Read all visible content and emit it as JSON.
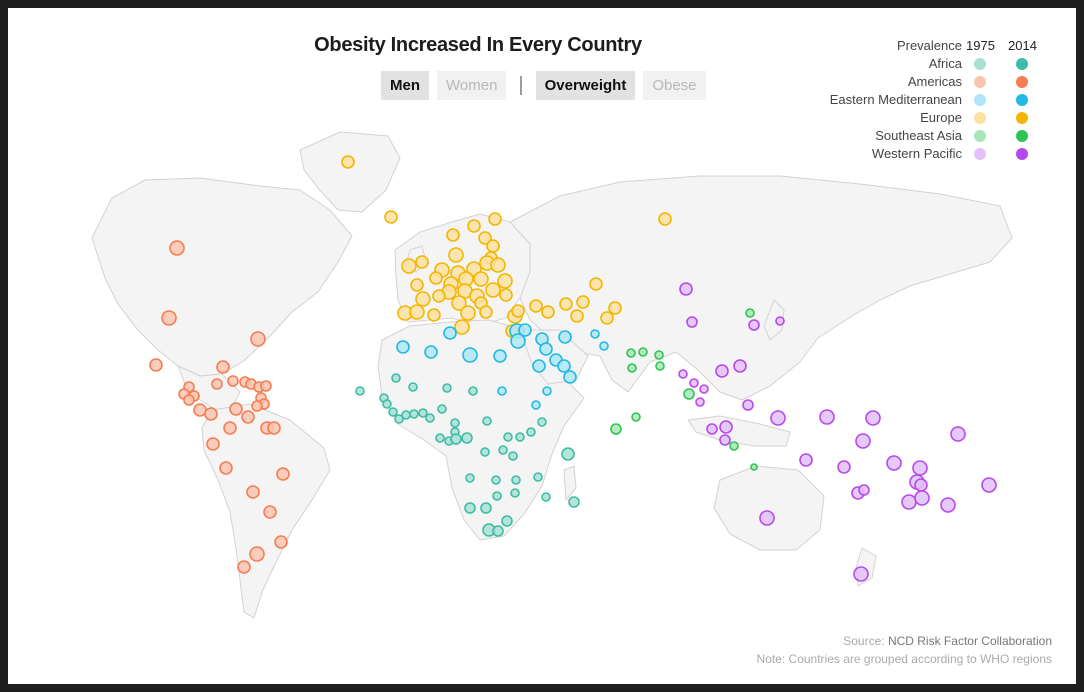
{
  "title": "Obesity Increased In Every Country",
  "toggles": {
    "sex": [
      {
        "label": "Men",
        "active": true
      },
      {
        "label": "Women",
        "active": false
      }
    ],
    "separator": "|",
    "measure": [
      {
        "label": "Overweight",
        "active": true
      },
      {
        "label": "Obese",
        "active": false
      }
    ]
  },
  "legend": {
    "header_label": "Prevalence",
    "year1": "1975",
    "year2": "2014",
    "regions": [
      {
        "name": "Africa",
        "color_1975": "#a8e0d3",
        "color_2014": "#3dbca6"
      },
      {
        "name": "Americas",
        "color_1975": "#f9c4b0",
        "color_2014": "#f47d52"
      },
      {
        "name": "Eastern Mediterranean",
        "color_1975": "#aee6f5",
        "color_2014": "#22b8e4"
      },
      {
        "name": "Europe",
        "color_1975": "#fbe0a0",
        "color_2014": "#f2b600"
      },
      {
        "name": "Southeast Asia",
        "color_1975": "#a9e6b6",
        "color_2014": "#2ec454"
      },
      {
        "name": "Western Pacific",
        "color_1975": "#e1c1f8",
        "color_2014": "#b748ee"
      }
    ]
  },
  "source": {
    "prefix": "Source: ",
    "name": "NCD Risk Factor Collaboration",
    "note": "Note: Countries are grouped according to WHO regions"
  }
}
